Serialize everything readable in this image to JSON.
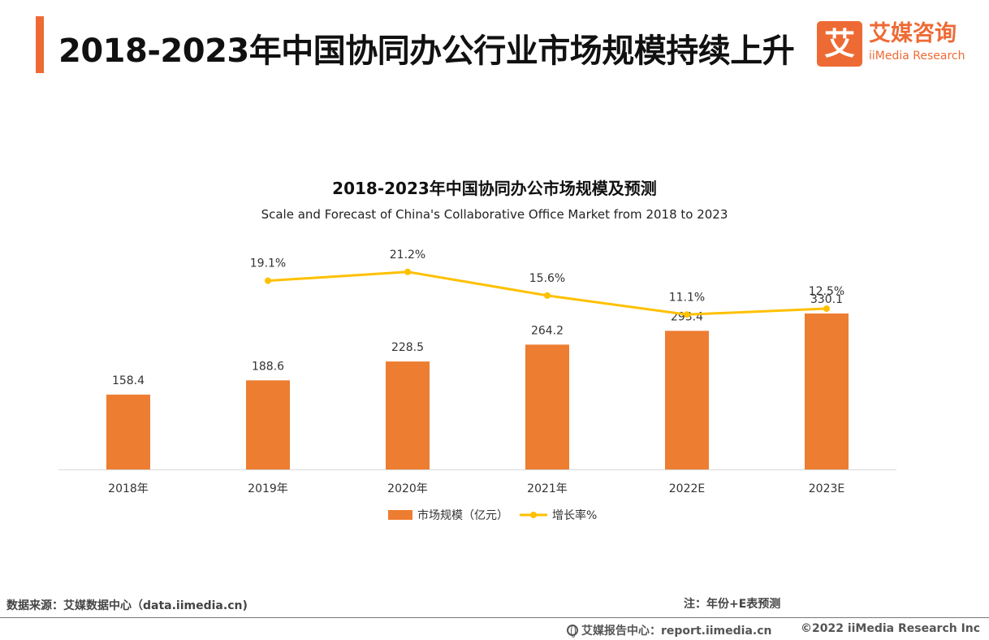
{
  "header": {
    "title": "2018-2023年中国协同办公行业市场规模持续上升",
    "accent_color": "#ee6a35"
  },
  "logo": {
    "mark": "艾",
    "name_cn": "艾媒咨询",
    "name_en": "iiMedia Research"
  },
  "chart_data": {
    "type": "bar",
    "title": "2018-2023年中国协同办公市场规模及预测",
    "subtitle": "Scale and Forecast of China's Collaborative Office Market from 2018 to 2023",
    "categories": [
      "2018年",
      "2019年",
      "2020年",
      "2021年",
      "2022E",
      "2023E"
    ],
    "series": [
      {
        "name": "市场规模（亿元）",
        "type": "bar",
        "color": "#ed7d31",
        "values": [
          158.4,
          188.6,
          228.5,
          264.2,
          293.4,
          330.1
        ],
        "labels": [
          "158.4",
          "188.6",
          "228.5",
          "264.2",
          "293.4",
          "330.1"
        ]
      },
      {
        "name": "增长率%",
        "type": "line",
        "color": "#ffc000",
        "values": [
          null,
          19.1,
          21.2,
          15.6,
          11.1,
          12.5
        ],
        "labels": [
          "",
          "19.1%",
          "21.2%",
          "15.6%",
          "11.1%",
          "12.5%"
        ]
      }
    ],
    "grid": false,
    "legend": "bottom-center"
  },
  "footer": {
    "source": "数据来源：艾媒数据中心（data.iimedia.cn)",
    "note": "注：年份+E表预测",
    "report": "艾媒报告中心：report.iimedia.cn",
    "copyright": "©2022  iiMedia Research  Inc"
  }
}
